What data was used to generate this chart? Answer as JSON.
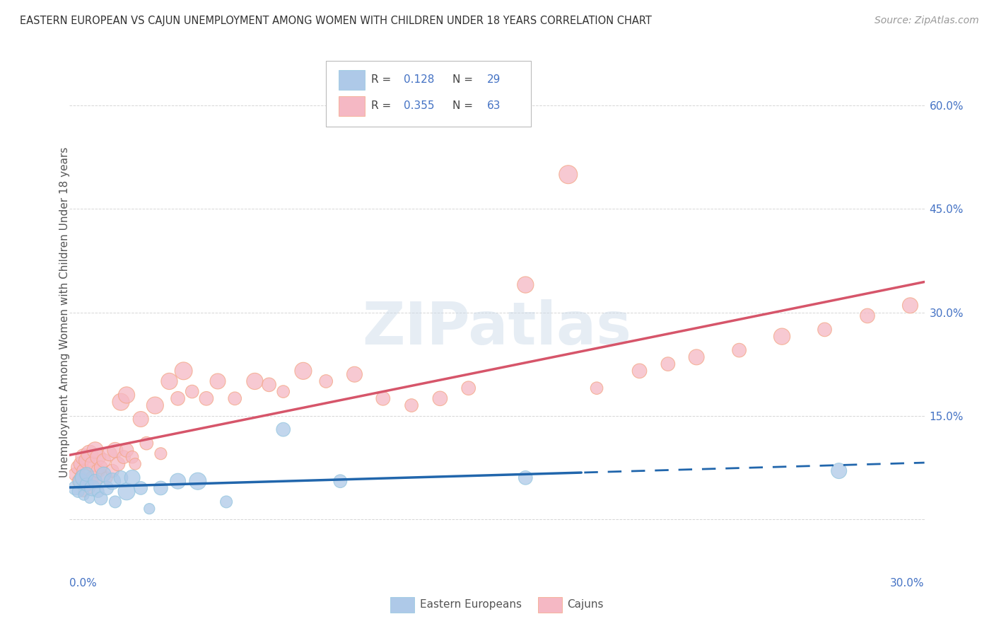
{
  "title": "EASTERN EUROPEAN VS CAJUN UNEMPLOYMENT AMONG WOMEN WITH CHILDREN UNDER 18 YEARS CORRELATION CHART",
  "source": "Source: ZipAtlas.com",
  "ylabel": "Unemployment Among Women with Children Under 18 years",
  "ytick_values": [
    0.0,
    0.15,
    0.3,
    0.45,
    0.6
  ],
  "ytick_labels": [
    "",
    "15.0%",
    "30.0%",
    "45.0%",
    "60.0%"
  ],
  "xlim": [
    0.0,
    0.3
  ],
  "ylim": [
    -0.08,
    0.68
  ],
  "blue_color": "#92c5de",
  "pink_color": "#f4a582",
  "blue_fill": "#aec9e8",
  "pink_fill": "#f5b8c4",
  "blue_line_color": "#2166ac",
  "pink_line_color": "#d6556a",
  "blue_R": 0.128,
  "blue_N": 29,
  "pink_R": 0.355,
  "pink_N": 63,
  "background_color": "#ffffff",
  "grid_color": "#cccccc",
  "legend_text_color": "#555555",
  "value_color": "#4472c4",
  "bottom_legend_labels": [
    "Eastern Europeans",
    "Cajuns"
  ],
  "watermark": "ZIPatlas"
}
